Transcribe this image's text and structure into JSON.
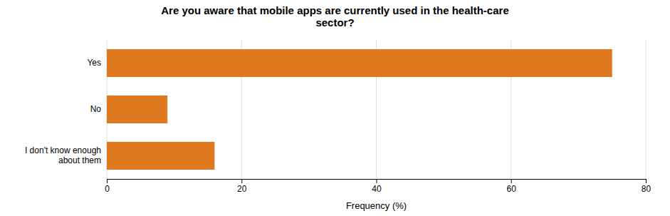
{
  "chart_data": {
    "type": "bar",
    "orientation": "horizontal",
    "title": "Are you aware that mobile apps are currently used in the health-care\nsector?",
    "categories": [
      "I don't know enough\nabout them",
      "No",
      "Yes"
    ],
    "values": [
      16,
      9,
      75
    ],
    "color": "#E07820",
    "xlabel": "Frequency (%)",
    "xlim": [
      0,
      80
    ],
    "xticks": [
      0,
      20,
      40,
      60,
      80
    ],
    "grid": true
  }
}
